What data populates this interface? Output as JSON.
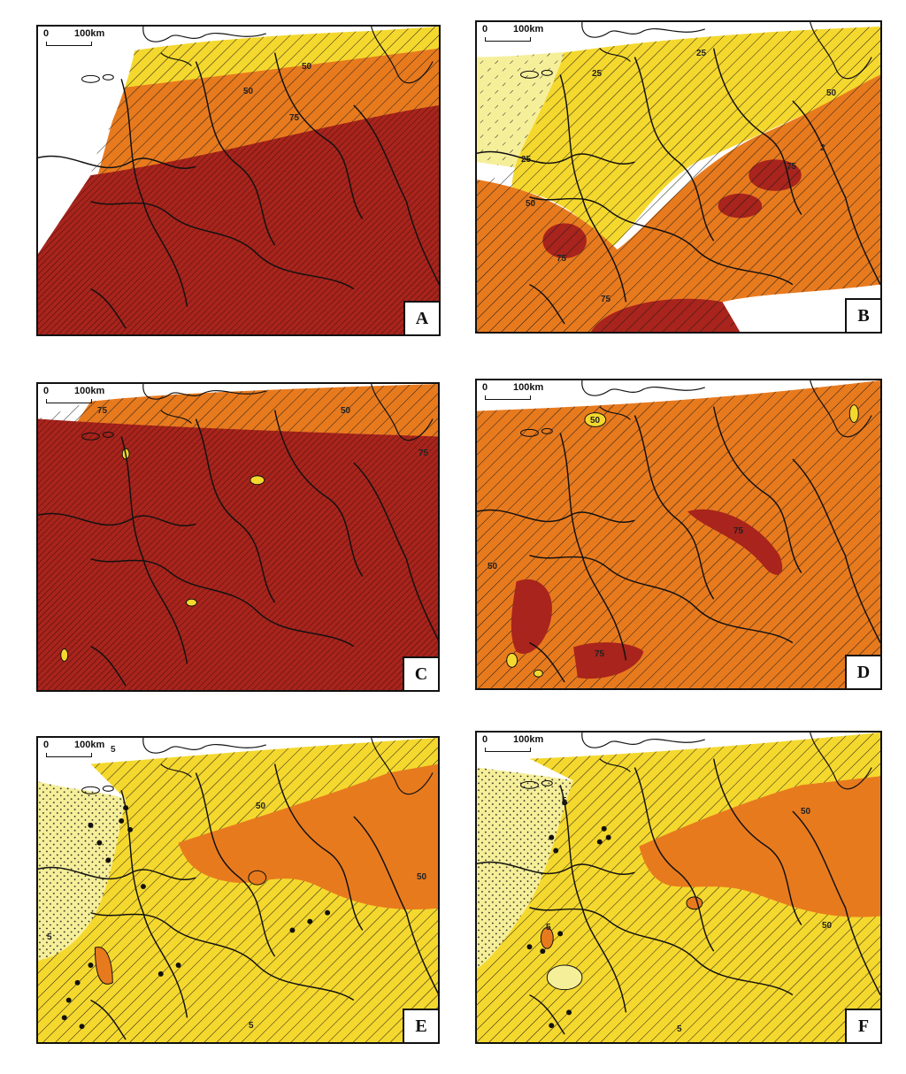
{
  "figure": {
    "scale_bar": {
      "zero": "0",
      "distance": "100km"
    },
    "colors": {
      "background": "#ffffff",
      "border": "#111111",
      "pale_yellow": "#f6ef9a",
      "yellow": "#f5d82e",
      "orange": "#e87a1e",
      "dark_red": "#a8241c"
    },
    "panels": [
      {
        "letter": "A",
        "contour_labels": [
          "50",
          "50",
          "75"
        ]
      },
      {
        "letter": "B",
        "contour_labels": [
          "25",
          "25",
          "50",
          "50",
          "25",
          "2",
          "75",
          "75",
          "75"
        ]
      },
      {
        "letter": "C",
        "contour_labels": [
          "75",
          "50",
          "75"
        ]
      },
      {
        "letter": "D",
        "contour_labels": [
          "50",
          "75",
          "50",
          "75"
        ]
      },
      {
        "letter": "E",
        "contour_labels": [
          "5",
          "50",
          "50",
          "5",
          "5"
        ]
      },
      {
        "letter": "F",
        "contour_labels": [
          "5",
          "50",
          "50",
          "5",
          "5"
        ]
      }
    ]
  }
}
